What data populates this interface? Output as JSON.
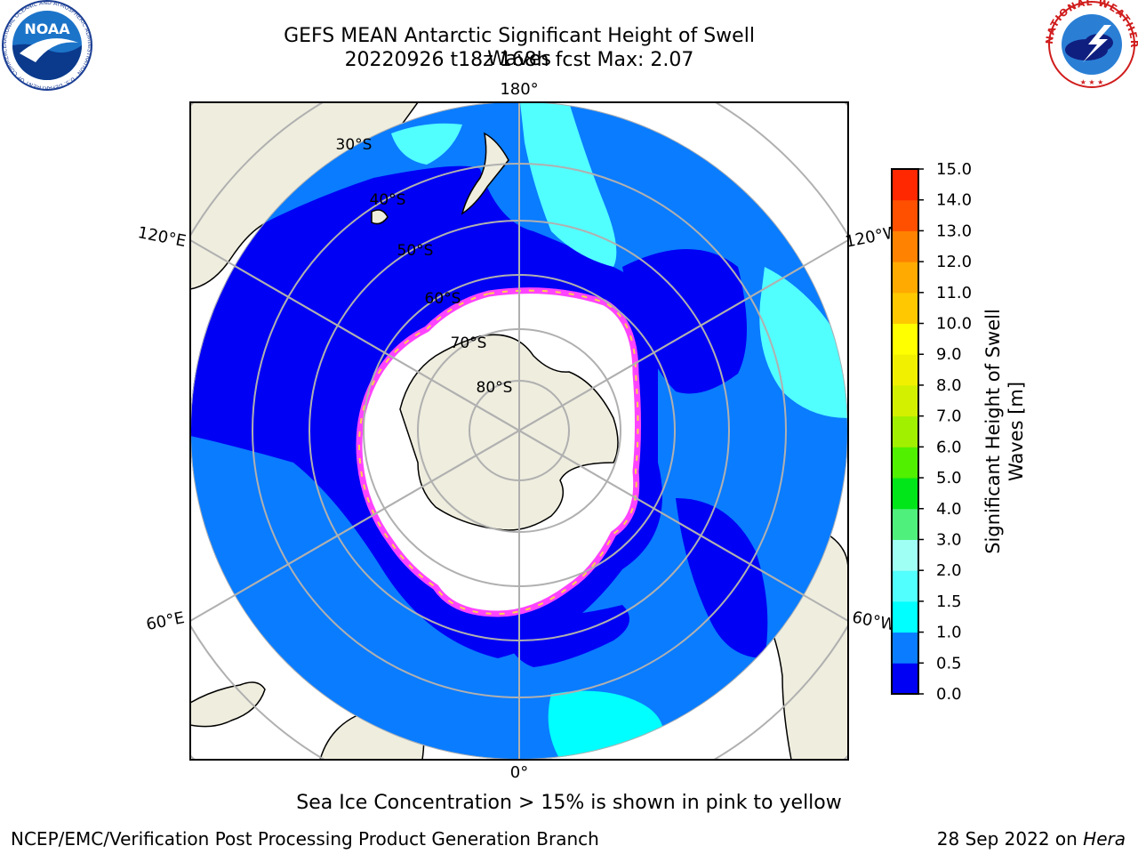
{
  "title_line1": "GEFS MEAN Antarctic Significant Height of Swell Waves",
  "title_line2": "20220926 t18z 168h fcst   Max: 2.07",
  "note": "Sea Ice Concentration > 15% is shown in pink to yellow",
  "credit": "NCEP/EMC/Verification Post Processing Product Generation Branch",
  "date": "28 Sep 2022 on",
  "date_host": "Hera",
  "logos": {
    "noaa_text": "NOAA",
    "noaa_ring": "NATIONAL OCEANIC AND ATMOSPHERIC ADMINISTRATION · U.S. DEPARTMENT OF COMMERCE",
    "nws_ring": "NATIONAL WEATHER SERVICE"
  },
  "map": {
    "projection": "south-polar-stereographic",
    "longitude_labels": [
      "180°",
      "120°E",
      "120°W",
      "60°E",
      "60°W",
      "0°"
    ],
    "latitude_labels": [
      "30°S",
      "40°S",
      "50°S",
      "60°S",
      "70°S",
      "80°S"
    ],
    "land_color": "#efedde",
    "ice_edge_colors": [
      "#ff44ff",
      "#ffd24a"
    ]
  },
  "colorbar": {
    "label_line1": "Significant Height of Swell",
    "label_line2": "Waves [m]",
    "ticks": [
      "0.0",
      "0.5",
      "1.0",
      "1.5",
      "2.0",
      "3.0",
      "4.0",
      "5.0",
      "6.0",
      "7.0",
      "8.0",
      "9.0",
      "10.0",
      "11.0",
      "12.0",
      "13.0",
      "14.0",
      "15.0"
    ],
    "colors": [
      "#0000f5",
      "#0a7cff",
      "#00ffff",
      "#52ffff",
      "#a0fff5",
      "#50f07c",
      "#00e618",
      "#50f000",
      "#a0f000",
      "#d2f000",
      "#f0f000",
      "#ffff00",
      "#ffc800",
      "#ffaa00",
      "#ff8200",
      "#ff5000",
      "#ff2800",
      "#ff0000"
    ]
  }
}
